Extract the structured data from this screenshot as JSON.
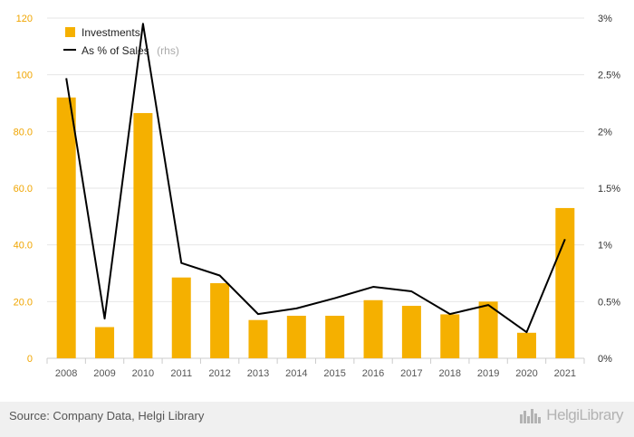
{
  "chart_data": {
    "type": "bar+line",
    "title": "",
    "categories": [
      "2008",
      "2009",
      "2010",
      "2011",
      "2012",
      "2013",
      "2014",
      "2015",
      "2016",
      "2017",
      "2018",
      "2019",
      "2020",
      "2021"
    ],
    "series": [
      {
        "name": "Investments",
        "type": "bar",
        "axis": "left",
        "values": [
          92,
          11,
          86.5,
          28.5,
          26.5,
          13.5,
          15,
          15,
          20.5,
          18.5,
          15.5,
          20,
          9,
          53
        ]
      },
      {
        "name": "As % of Sales",
        "type": "line",
        "axis": "right",
        "values": [
          2.47,
          0.35,
          2.95,
          0.84,
          0.73,
          0.39,
          0.44,
          0.53,
          0.63,
          0.59,
          0.39,
          0.47,
          0.23,
          1.05
        ]
      }
    ],
    "y_left": {
      "ylim": [
        0,
        120
      ],
      "ticks": [
        0,
        20,
        40,
        60,
        80,
        100,
        120
      ],
      "tick_labels": [
        "0",
        "20.0",
        "40.0",
        "60.0",
        "80.0",
        "100",
        "120"
      ]
    },
    "y_right": {
      "ylim": [
        0,
        3
      ],
      "ticks": [
        0,
        0.5,
        1,
        1.5,
        2,
        2.5,
        3
      ],
      "tick_labels": [
        "0%",
        "0.5%",
        "1%",
        "1.5%",
        "2%",
        "2.5%",
        "3%"
      ]
    },
    "legend": {
      "placement": "top-left",
      "rhs_note": "(rhs)"
    },
    "grid": true,
    "colors": {
      "bar": "#f5b000",
      "line": "#000000",
      "left_axis_text": "#f0a500",
      "grid": "#e6e6e6"
    }
  },
  "footer": {
    "source": "Source: Company Data, Helgi Library",
    "logo_text": "HelgiLibrary"
  }
}
